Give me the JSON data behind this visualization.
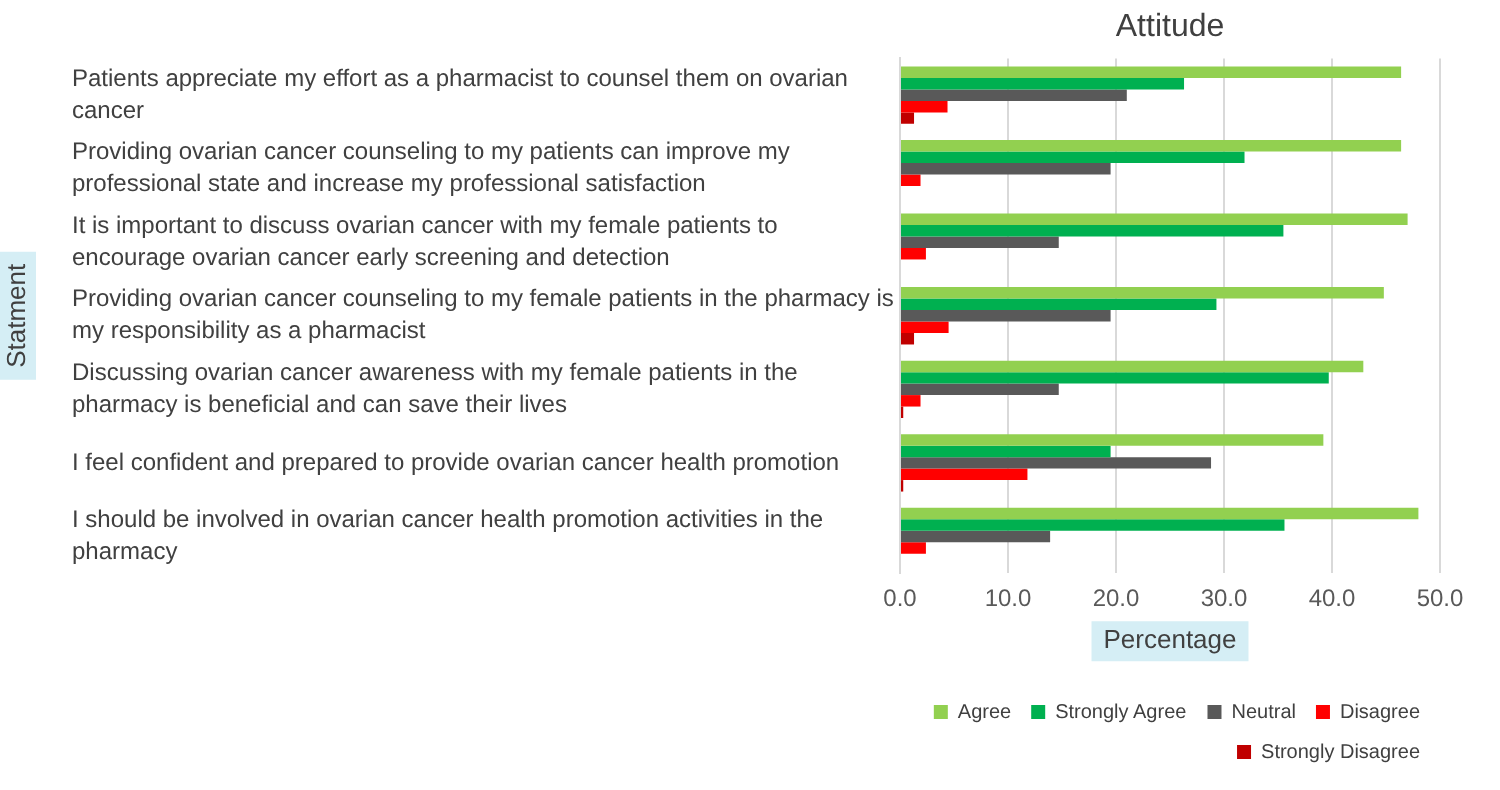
{
  "chart_data": {
    "type": "bar",
    "orientation": "horizontal",
    "title": "Attitude",
    "xlabel": "Percentage",
    "ylabel": "Statment",
    "categories": [
      "Patients appreciate my effort as a pharmacist to counsel them on ovarian cancer",
      "Providing ovarian cancer counseling to my patients can improve my professional state and increase my professional satisfaction",
      "It is important to discuss ovarian cancer with my female patients to encourage ovarian cancer early screening and detection",
      "Providing ovarian cancer counseling to my female patients in the pharmacy is my responsibility as a pharmacist",
      "Discussing ovarian cancer awareness with my female patients in the pharmacy is beneficial and can save their lives",
      "I feel confident and prepared to provide ovarian cancer health promotion",
      "I should be involved in ovarian cancer health promotion activities in the pharmacy"
    ],
    "series": [
      {
        "name": "Agree",
        "color": "#92d050",
        "values": [
          46.4,
          46.4,
          47.0,
          44.8,
          42.9,
          39.2,
          48.0
        ]
      },
      {
        "name": "Strongly Agree",
        "color": "#00b050",
        "values": [
          26.3,
          31.9,
          35.5,
          29.3,
          39.7,
          19.5,
          35.6
        ]
      },
      {
        "name": "Neutral",
        "color": "#595959",
        "values": [
          21.0,
          19.5,
          14.7,
          19.5,
          14.7,
          28.8,
          13.9
        ]
      },
      {
        "name": "Disagree",
        "color": "#ff0000",
        "values": [
          4.4,
          1.9,
          2.4,
          4.5,
          1.9,
          11.8,
          2.4
        ]
      },
      {
        "name": "Strongly Disagree",
        "color": "#c00000",
        "values": [
          1.3,
          0,
          0,
          1.3,
          0.3,
          0.3,
          0
        ]
      }
    ],
    "xlim": [
      0,
      50
    ],
    "xticks": [
      {
        "value": 0,
        "label": "0.0"
      },
      {
        "value": 10,
        "label": "10.0"
      },
      {
        "value": 20,
        "label": "20.0"
      },
      {
        "value": 30,
        "label": "30.0"
      },
      {
        "value": 40,
        "label": "40.0"
      },
      {
        "value": 50,
        "label": "50.0"
      }
    ],
    "grid": "x",
    "legend": "bottom right"
  }
}
